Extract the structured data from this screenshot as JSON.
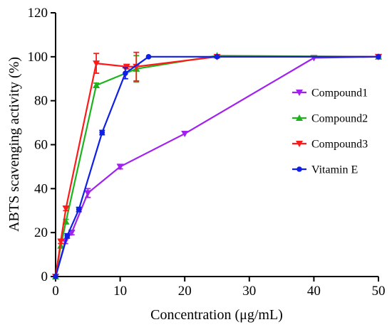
{
  "chart_data": {
    "type": "line",
    "xlabel": "Concentration (μg/mL)",
    "ylabel": "ABTS scavenging activity (%)",
    "xlim": [
      0,
      50
    ],
    "ylim": [
      0,
      120
    ],
    "xticks": [
      0,
      10,
      20,
      30,
      40,
      50
    ],
    "yticks": [
      0,
      20,
      40,
      60,
      80,
      100,
      120
    ],
    "grid": false,
    "legend_position": "right",
    "series": [
      {
        "name": "Compound1",
        "color": "#a020f0",
        "marker": "triangle-down",
        "x": [
          0,
          1.5,
          2.5,
          5,
          10,
          20,
          40,
          50
        ],
        "y": [
          0,
          16,
          20,
          38,
          50,
          65,
          99.5,
          100
        ],
        "err": [
          0,
          1,
          1,
          2,
          1,
          0.5,
          0.5,
          0.5
        ]
      },
      {
        "name": "Compound2",
        "color": "#1db31d",
        "marker": "triangle-up",
        "x": [
          0,
          0.8,
          1.6,
          6.3,
          12.5,
          25,
          50
        ],
        "y": [
          0,
          14,
          25,
          87,
          94.5,
          100.5,
          100
        ],
        "err": [
          0,
          1,
          1,
          1,
          6,
          0.5,
          0.5
        ]
      },
      {
        "name": "Compound3",
        "color": "#ff1a1a",
        "marker": "triangle-down",
        "x": [
          0,
          0.8,
          1.6,
          6.3,
          11,
          12.5,
          25,
          50
        ],
        "y": [
          0,
          16,
          31,
          97,
          95.5,
          95.5,
          100,
          100
        ],
        "err": [
          0,
          1,
          1,
          4.5,
          1,
          6.5,
          0.5,
          0.5
        ]
      },
      {
        "name": "Vitamin E",
        "color": "#0f1fe6",
        "marker": "circle",
        "x": [
          0,
          1.8,
          3.6,
          7.2,
          10.8,
          14.4,
          25,
          50
        ],
        "y": [
          0,
          18.5,
          30.5,
          65.5,
          92.5,
          100,
          100,
          100
        ],
        "err": [
          0,
          1,
          1,
          1,
          2.5,
          0.5,
          0.5,
          0.5
        ]
      }
    ]
  }
}
